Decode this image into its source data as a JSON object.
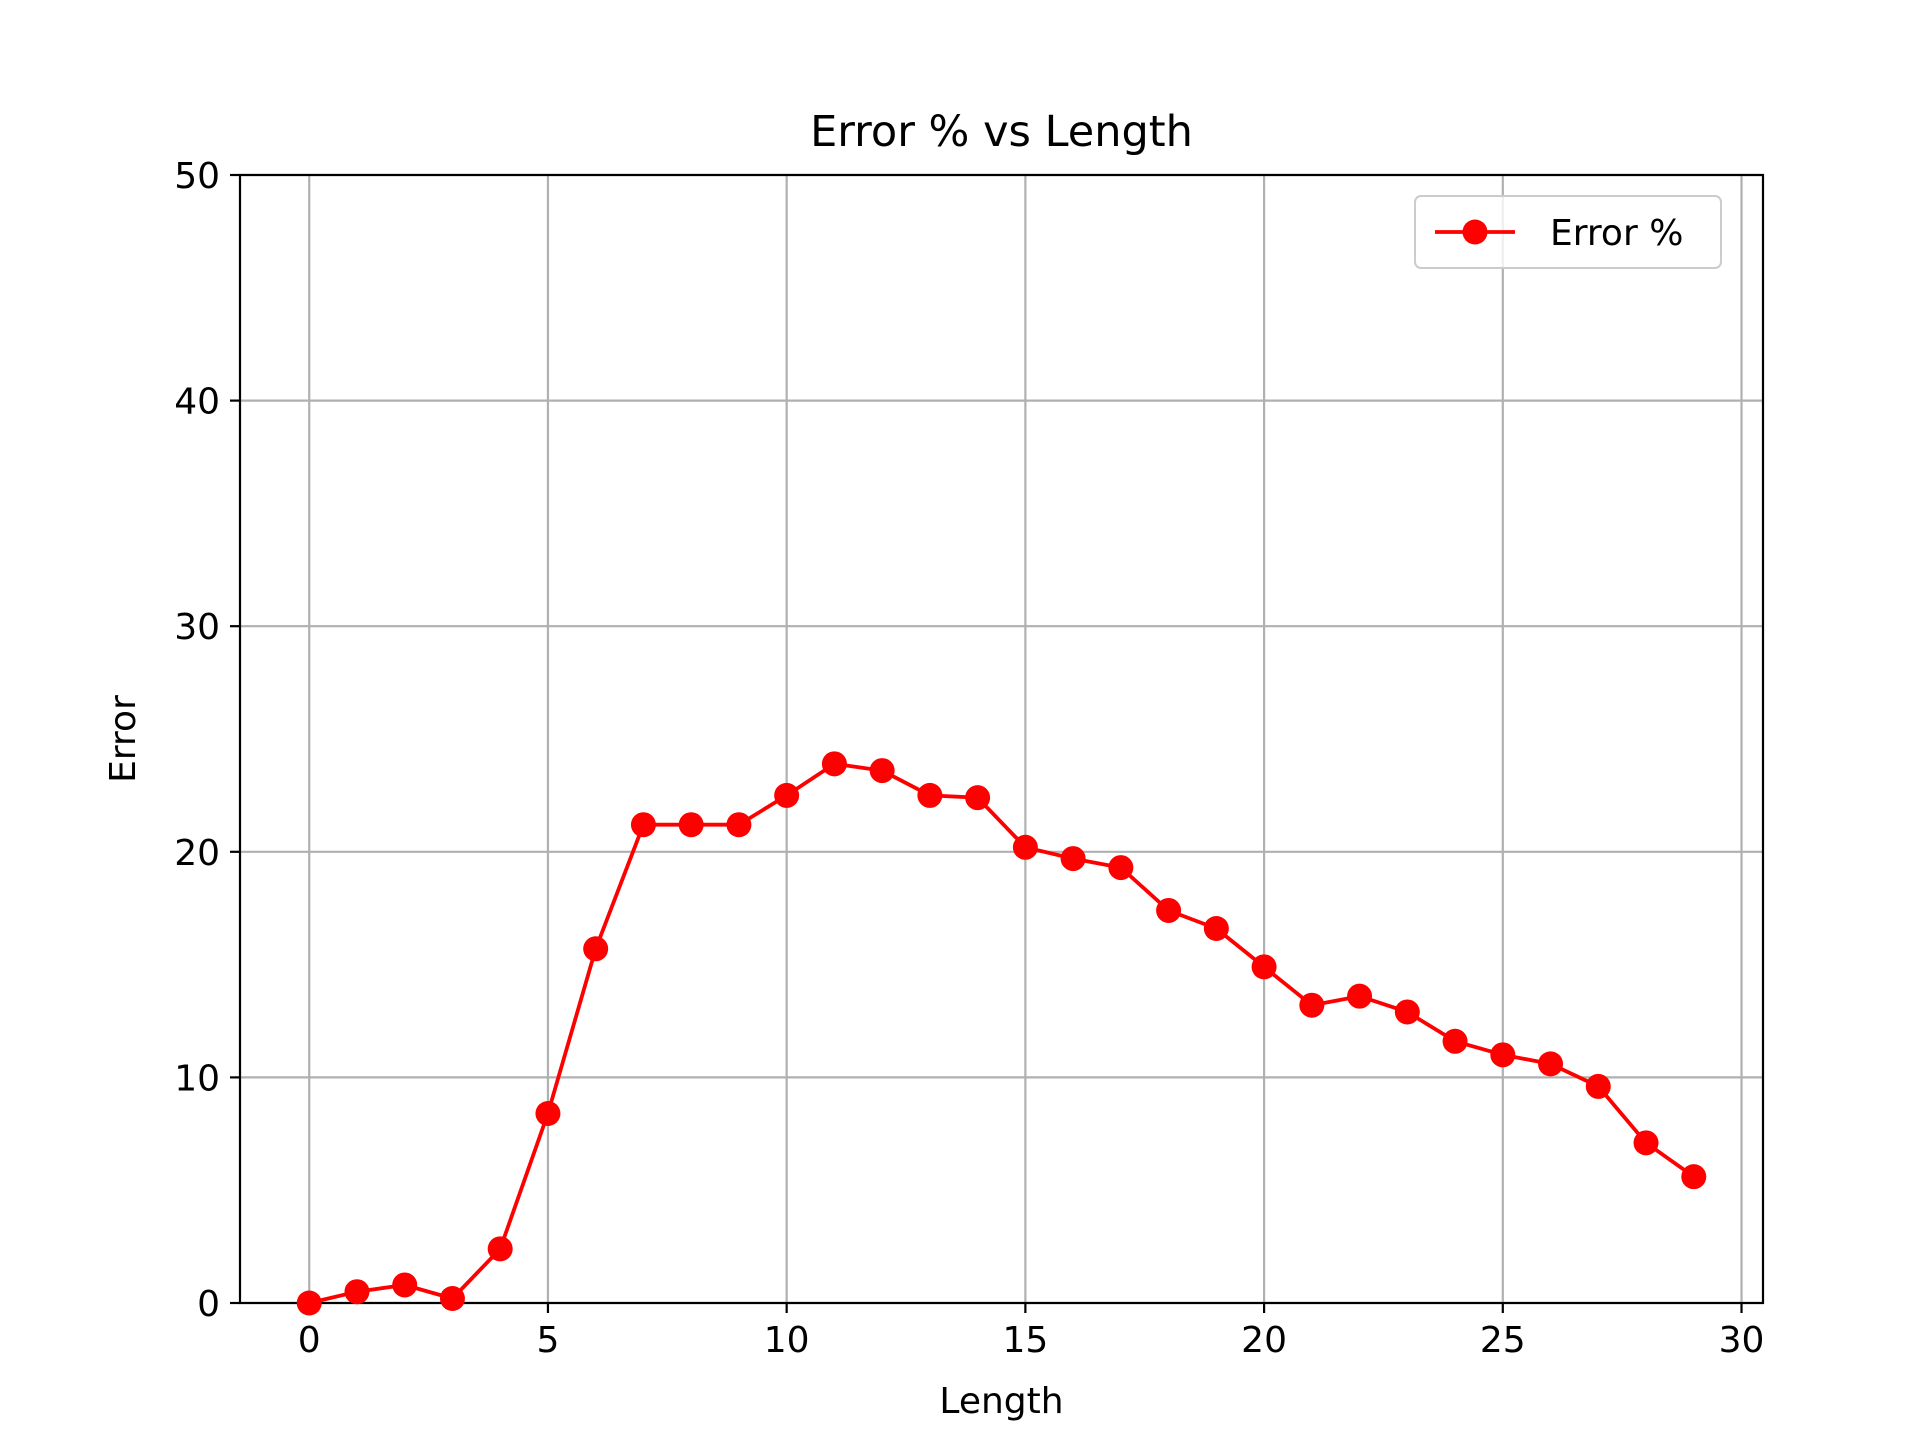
{
  "chart_data": {
    "type": "line",
    "title": "Error % vs Length",
    "xlabel": "Length",
    "ylabel": "Error",
    "xlim": [
      -1.45,
      30.45
    ],
    "ylim": [
      0,
      50
    ],
    "xticks": [
      0,
      5,
      10,
      15,
      20,
      25,
      30
    ],
    "yticks": [
      0,
      10,
      20,
      30,
      40,
      50
    ],
    "grid": true,
    "legend_position": "upper right",
    "series": [
      {
        "name": "Error %",
        "color": "#ff0000",
        "marker": "circle",
        "x": [
          0,
          1,
          2,
          3,
          4,
          5,
          6,
          7,
          8,
          9,
          10,
          11,
          12,
          13,
          14,
          15,
          16,
          17,
          18,
          19,
          20,
          21,
          22,
          23,
          24,
          25,
          26,
          27,
          28,
          29
        ],
        "y": [
          0.0,
          0.5,
          0.8,
          0.2,
          2.4,
          8.4,
          15.7,
          21.2,
          21.2,
          21.2,
          22.5,
          23.9,
          23.6,
          22.5,
          22.4,
          20.2,
          19.7,
          19.3,
          17.4,
          16.6,
          14.9,
          13.2,
          13.6,
          12.9,
          11.6,
          11.0,
          10.6,
          9.6,
          7.1,
          5.6
        ]
      }
    ]
  }
}
